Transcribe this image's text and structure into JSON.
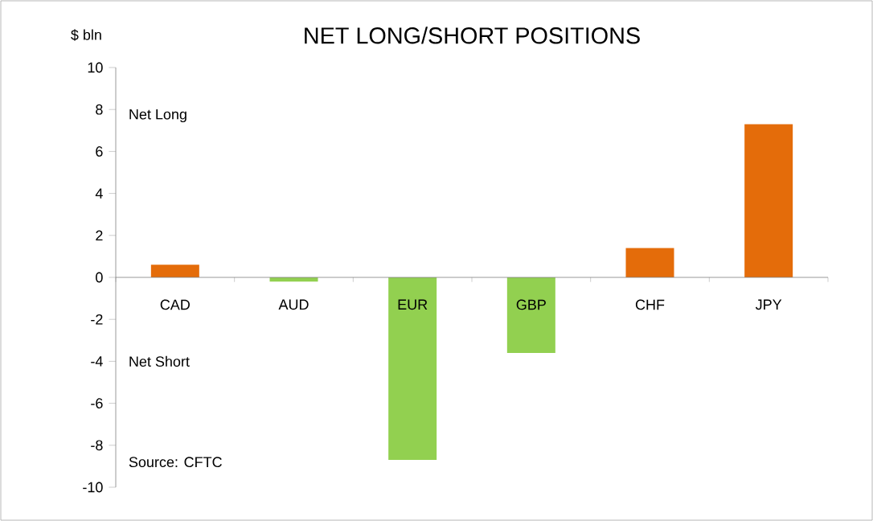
{
  "chart_data": {
    "type": "bar",
    "title": "NET LONG/SHORT POSITIONS",
    "ylabel": "$ bln",
    "categories": [
      "CAD",
      "AUD",
      "EUR",
      "GBP",
      "CHF",
      "JPY"
    ],
    "values": [
      0.6,
      -0.2,
      -8.7,
      -3.6,
      1.4,
      7.3
    ],
    "colors": [
      "#e46c0a",
      "#92d050",
      "#92d050",
      "#92d050",
      "#e46c0a",
      "#e46c0a"
    ],
    "ylim": [
      -10,
      10
    ],
    "yticks": [
      -10,
      -8,
      -6,
      -4,
      -2,
      0,
      2,
      4,
      6,
      8,
      10
    ],
    "annotations": [
      "Net Long",
      "Net Short",
      "Source: CFTC"
    ],
    "grid": false
  }
}
